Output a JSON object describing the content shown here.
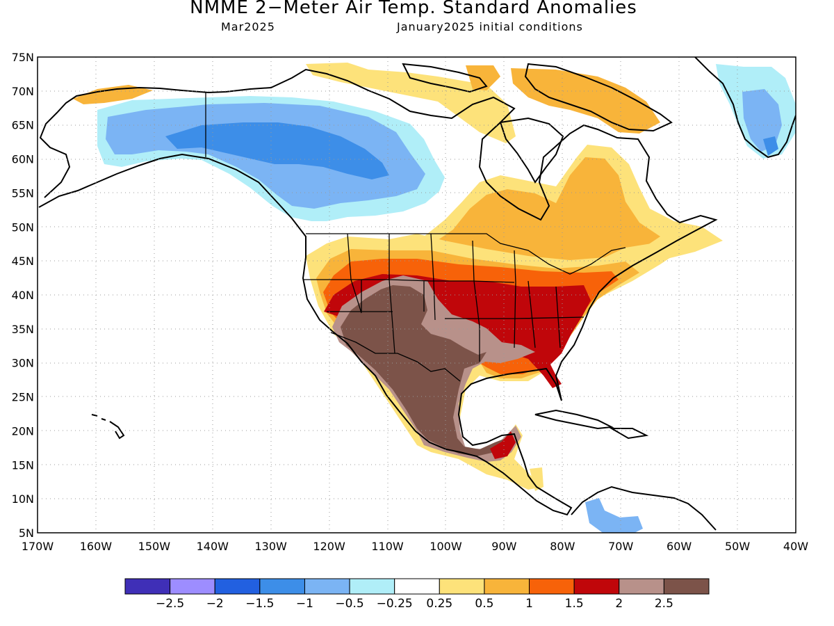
{
  "title": "NMME 2−Meter Air Temp. Standard Anomalies",
  "subtitle_left": "Mar2025",
  "subtitle_right": "January2025 initial conditions",
  "lat_labels": [
    "75N",
    "70N",
    "65N",
    "60N",
    "55N",
    "50N",
    "45N",
    "40N",
    "35N",
    "30N",
    "25N",
    "20N",
    "15N",
    "10N",
    "5N"
  ],
  "lon_labels": [
    "170W",
    "160W",
    "150W",
    "140W",
    "130W",
    "120W",
    "110W",
    "100W",
    "90W",
    "80W",
    "70W",
    "60W",
    "50W",
    "40W"
  ],
  "colorbar": {
    "colors": [
      "#3f2fb7",
      "#9d8dff",
      "#2260e0",
      "#3d8ee8",
      "#7bb4f4",
      "#b0eef8",
      "#ffffff",
      "#fde27a",
      "#f8b43a",
      "#f76209",
      "#c0060a",
      "#b8918a",
      "#7c5349"
    ],
    "labels": [
      "−2.5",
      "−2",
      "−1.5",
      "−1",
      "−0.5",
      "−0.25",
      "0.25",
      "0.5",
      "1",
      "1.5",
      "2",
      "2.5"
    ]
  }
}
